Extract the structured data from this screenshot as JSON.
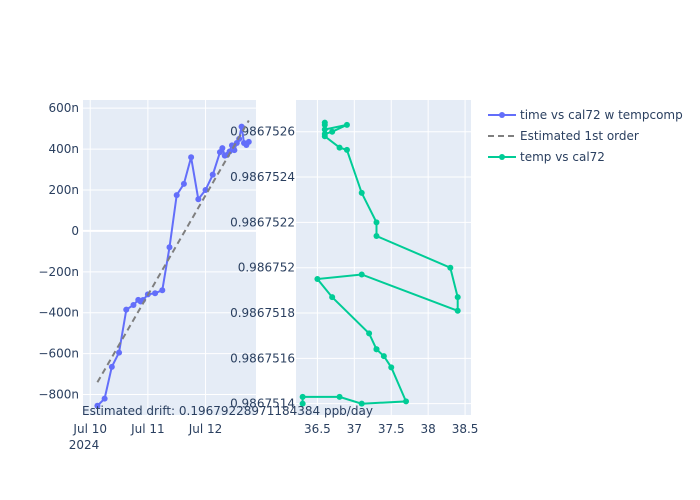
{
  "chart_data": [
    {
      "type": "scatter",
      "mode": "lines+markers",
      "xaxis_type": "date",
      "x_tick_labels": [
        "Jul 10",
        "Jul 11",
        "Jul 12"
      ],
      "x_year_label": "2024",
      "xlim": [
        "2024-07-09 21:00",
        "2024-07-12 21:00"
      ],
      "ylim": [
        -900,
        640
      ],
      "y_tick_values": [
        -800,
        -600,
        -400,
        -200,
        0,
        200,
        400,
        600
      ],
      "y_tick_labels": [
        "−800n",
        "−600n",
        "−400n",
        "−200n",
        "0",
        "200n",
        "400n",
        "600n"
      ],
      "grid": true,
      "series": [
        {
          "name": "time vs cal72 w tempcomp",
          "color": "#636efa",
          "style": "lines+markers",
          "x": [
            "2024-07-10 03:00",
            "2024-07-10 06:00",
            "2024-07-10 09:00",
            "2024-07-10 12:00",
            "2024-07-10 15:00",
            "2024-07-10 18:00",
            "2024-07-10 20:00",
            "2024-07-10 21:00",
            "2024-07-10 22:00",
            "2024-07-11 00:00",
            "2024-07-11 03:00",
            "2024-07-11 06:00",
            "2024-07-11 09:00",
            "2024-07-11 12:00",
            "2024-07-11 15:00",
            "2024-07-11 18:00",
            "2024-07-11 21:00",
            "2024-07-12 00:00",
            "2024-07-12 03:00",
            "2024-07-12 06:00",
            "2024-07-12 07:00",
            "2024-07-12 08:00",
            "2024-07-12 09:00",
            "2024-07-12 10:00",
            "2024-07-12 11:00",
            "2024-07-12 12:00",
            "2024-07-12 13:00",
            "2024-07-12 14:00",
            "2024-07-12 15:00",
            "2024-07-12 16:00",
            "2024-07-12 17:00",
            "2024-07-12 18:00"
          ],
          "y": [
            -855,
            -820,
            -665,
            -595,
            -385,
            -362,
            -337,
            -345,
            -338,
            -310,
            -305,
            -290,
            -80,
            175,
            230,
            360,
            155,
            200,
            275,
            385,
            405,
            368,
            372,
            388,
            418,
            395,
            430,
            450,
            510,
            430,
            420,
            435
          ]
        },
        {
          "name": "Estimated 1st order",
          "color": "#7f7f7f",
          "style": "dash",
          "x": [
            "2024-07-10 03:00",
            "2024-07-12 18:00"
          ],
          "y": [
            -740,
            540
          ]
        }
      ],
      "annotation": "Estimated drift:  0.19679228971184384 ppb/day"
    },
    {
      "type": "scatter",
      "mode": "lines+markers",
      "xlim": [
        36.21,
        38.58
      ],
      "ylim": [
        0.98675135,
        0.98675274
      ],
      "x_tick_values": [
        36.5,
        37,
        37.5,
        38,
        38.5
      ],
      "x_tick_labels": [
        "36.5",
        "37",
        "37.5",
        "38",
        "38.5"
      ],
      "y_tick_values": [
        0.9867514,
        0.9867516,
        0.9867518,
        0.986752,
        0.9867522,
        0.9867524,
        0.9867526
      ],
      "y_tick_labels": [
        "0.9867514",
        "0.9867516",
        "0.9867518",
        "0.986752",
        "0.9867522",
        "0.9867524",
        "0.9867526"
      ],
      "grid": true,
      "series": [
        {
          "name": "temp vs cal72",
          "color": "#00cc96",
          "style": "lines+markers",
          "x": [
            36.3,
            36.3,
            36.8,
            37.1,
            37.7,
            37.5,
            37.4,
            37.3,
            37.3,
            37.2,
            36.7,
            36.5,
            37.1,
            38.4,
            38.4,
            38.3,
            37.3,
            37.3,
            37.1,
            36.9,
            36.8,
            36.6,
            36.6,
            36.7,
            36.9,
            36.6,
            36.6,
            36.6
          ],
          "y": [
            0.9867514,
            0.98675143,
            0.98675143,
            0.9867514,
            0.98675141,
            0.98675156,
            0.98675161,
            0.98675164,
            0.98675164,
            0.98675171,
            0.98675187,
            0.98675195,
            0.98675197,
            0.98675181,
            0.98675187,
            0.986752,
            0.98675214,
            0.9867522,
            0.98675233,
            0.98675252,
            0.98675253,
            0.98675258,
            0.98675259,
            0.9867526,
            0.98675263,
            0.98675261,
            0.98675263,
            0.98675264
          ]
        }
      ]
    }
  ],
  "legend": {
    "placement": "top-right",
    "items": [
      {
        "label": "time vs cal72 w tempcomp",
        "color": "#636efa",
        "style": "lines+markers"
      },
      {
        "label": "Estimated 1st order",
        "color": "#7f7f7f",
        "style": "dash"
      },
      {
        "label": "temp vs cal72",
        "color": "#00cc96",
        "style": "lines+markers"
      }
    ]
  },
  "colors": {
    "plot_bg": "#e5ecf6",
    "grid": "#ffffff",
    "text": "#2a3f5f"
  }
}
